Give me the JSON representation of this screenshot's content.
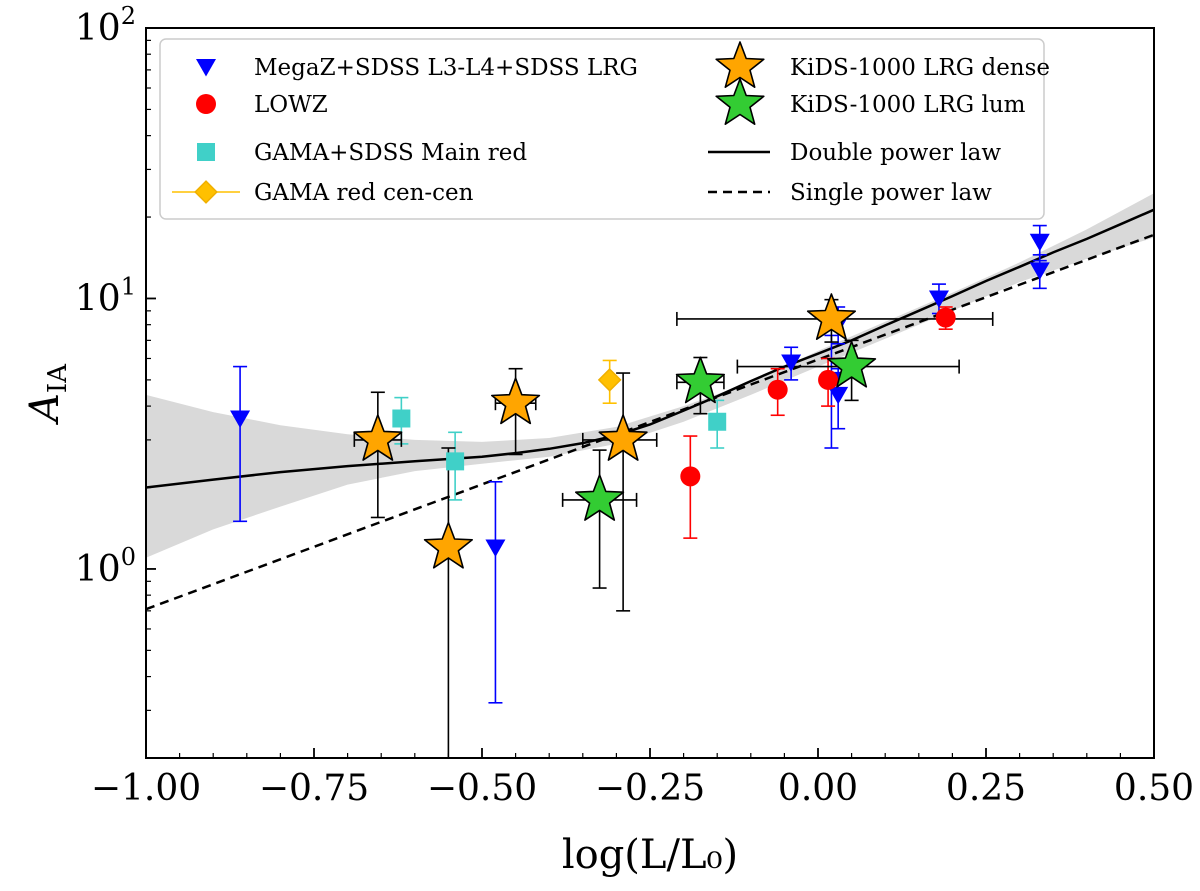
{
  "chart_data": {
    "type": "scatter",
    "title": "",
    "xlabel": "log(L/L₀)",
    "ylabel_main": "A",
    "ylabel_sub": "IA",
    "xlim": [
      -1.0,
      0.5
    ],
    "ylim": [
      0.2,
      100
    ],
    "yscale": "log",
    "x_ticks": [
      -1.0,
      -0.75,
      -0.5,
      -0.25,
      0.0,
      0.25,
      0.5
    ],
    "x_tick_labels": [
      "−1.00",
      "−0.75",
      "−0.50",
      "−0.25",
      "0.00",
      "0.25",
      "0.50"
    ],
    "y_ticks": [
      1,
      10,
      100
    ],
    "y_tick_labels": [
      {
        "base": "10",
        "exp": "0"
      },
      {
        "base": "10",
        "exp": "1"
      },
      {
        "base": "10",
        "exp": "2"
      }
    ],
    "legend_position": "top",
    "colors": {
      "megaz": "#0000ff",
      "lowz": "#ff0000",
      "gama_sdss": "#40d0c8",
      "gama_cen": "#ffc000",
      "kids_dense": "#ffa500",
      "kids_lum": "#33cc33",
      "band": "#d9d9d9",
      "line": "#000000"
    },
    "series": [
      {
        "name": "MegaZ+SDSS L3-L4+SDSS LRG",
        "marker": "triangle-down",
        "color": "#0000ff",
        "points": [
          {
            "x": -0.86,
            "y": 3.6,
            "ylo": 1.5,
            "yhi": 5.6
          },
          {
            "x": -0.48,
            "y": 1.2,
            "ylo": 0.32,
            "yhi": 2.1
          },
          {
            "x": -0.04,
            "y": 5.8,
            "ylo": 5.0,
            "yhi": 6.6
          },
          {
            "x": 0.02,
            "y": 5.0,
            "ylo": 2.8,
            "yhi": 7.3
          },
          {
            "x": 0.03,
            "y": 4.4,
            "ylo": 3.3,
            "yhi": 5.5
          },
          {
            "x": 0.03,
            "y": 8.0,
            "ylo": 6.8,
            "yhi": 9.3
          },
          {
            "x": 0.18,
            "y": 10.0,
            "ylo": 8.8,
            "yhi": 11.3
          },
          {
            "x": 0.33,
            "y": 16.2,
            "ylo": 13.8,
            "yhi": 18.6
          },
          {
            "x": 0.33,
            "y": 12.7,
            "ylo": 10.9,
            "yhi": 14.5
          }
        ]
      },
      {
        "name": "LOWZ",
        "marker": "circle",
        "color": "#ff0000",
        "points": [
          {
            "x": -0.19,
            "y": 2.2,
            "ylo": 1.3,
            "yhi": 3.1
          },
          {
            "x": -0.06,
            "y": 4.6,
            "ylo": 3.7,
            "yhi": 5.5
          },
          {
            "x": 0.015,
            "y": 5.0,
            "ylo": 4.0,
            "yhi": 6.0
          },
          {
            "x": 0.19,
            "y": 8.5,
            "ylo": 7.7,
            "yhi": 9.3
          }
        ]
      },
      {
        "name": "GAMA+SDSS Main red",
        "marker": "square",
        "color": "#40d0c8",
        "points": [
          {
            "x": -0.62,
            "y": 3.6,
            "ylo": 2.9,
            "yhi": 4.3
          },
          {
            "x": -0.54,
            "y": 2.5,
            "ylo": 1.8,
            "yhi": 3.2
          },
          {
            "x": -0.15,
            "y": 3.5,
            "ylo": 2.8,
            "yhi": 4.2
          }
        ]
      },
      {
        "name": "GAMA red cen-cen",
        "marker": "diamond",
        "color": "#ffc000",
        "points": [
          {
            "x": -0.31,
            "y": 5.0,
            "ylo": 4.1,
            "yhi": 5.9
          }
        ]
      },
      {
        "name": "KiDS-1000 LRG dense",
        "marker": "star",
        "color": "#ffa500",
        "points": [
          {
            "x": -0.655,
            "y": 3.0,
            "ylo": 1.55,
            "yhi": 4.5,
            "xlo": -0.69,
            "xhi": -0.62
          },
          {
            "x": -0.55,
            "y": 1.2,
            "ylo": 0.2,
            "yhi": 2.8
          },
          {
            "x": -0.45,
            "y": 4.1,
            "ylo": 2.65,
            "yhi": 5.5,
            "xlo": -0.48,
            "xhi": -0.42
          },
          {
            "x": -0.29,
            "y": 3.0,
            "ylo": 0.7,
            "yhi": 5.3,
            "xlo": -0.35,
            "xhi": -0.24
          },
          {
            "x": 0.02,
            "y": 8.4,
            "ylo": 6.9,
            "yhi": 9.9,
            "xlo": -0.21,
            "xhi": 0.26
          }
        ]
      },
      {
        "name": "KiDS-1000 LRG lum",
        "marker": "star",
        "color": "#33cc33",
        "points": [
          {
            "x": -0.325,
            "y": 1.8,
            "ylo": 0.85,
            "yhi": 2.75,
            "xlo": -0.38,
            "xhi": -0.27
          },
          {
            "x": -0.175,
            "y": 4.9,
            "ylo": 3.75,
            "yhi": 6.05,
            "xlo": -0.21,
            "xhi": -0.14
          },
          {
            "x": 0.05,
            "y": 5.6,
            "ylo": 4.2,
            "yhi": 7.0,
            "xlo": -0.12,
            "xhi": 0.21
          }
        ]
      }
    ],
    "lines": [
      {
        "name": "Double power law",
        "style": "solid",
        "x": [
          -1.0,
          -0.9,
          -0.8,
          -0.7,
          -0.6,
          -0.5,
          -0.45,
          -0.4,
          -0.35,
          -0.3,
          -0.25,
          -0.2,
          -0.15,
          -0.1,
          -0.05,
          0.0,
          0.05,
          0.1,
          0.15,
          0.2,
          0.25,
          0.3,
          0.35,
          0.4,
          0.45,
          0.5
        ],
        "y": [
          2.0,
          2.14,
          2.28,
          2.4,
          2.5,
          2.6,
          2.68,
          2.78,
          2.92,
          3.12,
          3.42,
          3.85,
          4.35,
          4.95,
          5.6,
          6.25,
          7.0,
          7.95,
          9.0,
          10.2,
          11.6,
          13.1,
          14.8,
          16.6,
          18.8,
          21.3
        ]
      },
      {
        "name": "Single power law",
        "style": "dashed",
        "x": [
          -1.0,
          0.5
        ],
        "y": [
          0.71,
          17.2
        ]
      }
    ],
    "band": {
      "x": [
        -1.0,
        -0.9,
        -0.8,
        -0.7,
        -0.6,
        -0.5,
        -0.4,
        -0.3,
        -0.2,
        -0.1,
        0.0,
        0.1,
        0.2,
        0.3,
        0.4,
        0.5
      ],
      "lower": [
        1.1,
        1.4,
        1.7,
        2.05,
        2.3,
        2.45,
        2.6,
        2.9,
        3.5,
        4.4,
        5.6,
        7.1,
        9.0,
        11.5,
        14.0,
        16.8
      ],
      "upper": [
        4.4,
        3.8,
        3.4,
        3.15,
        3.0,
        2.95,
        3.05,
        3.35,
        4.0,
        4.9,
        6.4,
        8.2,
        10.5,
        13.6,
        18.0,
        24.5
      ]
    }
  }
}
